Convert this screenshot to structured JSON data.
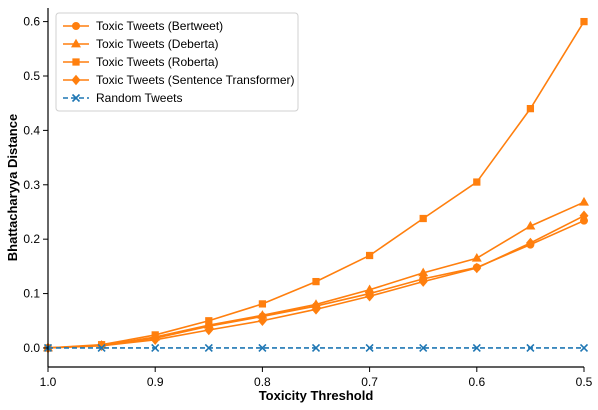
{
  "chart_data": {
    "type": "line",
    "xlabel": "Toxicity Threshold",
    "ylabel": "Bhattacharyya Distance",
    "xlim": [
      1.0,
      0.5
    ],
    "ylim": [
      -0.035,
      0.625
    ],
    "x_reversed": true,
    "grid": false,
    "legend_position": "top-left",
    "x_ticks": [
      1.0,
      0.9,
      0.8,
      0.7,
      0.6,
      0.5
    ],
    "x_tick_labels": [
      "1.0",
      "0.9",
      "0.8",
      "0.7",
      "0.6",
      "0.5"
    ],
    "y_ticks": [
      0.0,
      0.1,
      0.2,
      0.3,
      0.4,
      0.5,
      0.6
    ],
    "y_tick_labels": [
      "0.0",
      "0.1",
      "0.2",
      "0.3",
      "0.4",
      "0.5",
      "0.6"
    ],
    "x": [
      1.0,
      0.95,
      0.9,
      0.85,
      0.8,
      0.75,
      0.7,
      0.65,
      0.6,
      0.55,
      0.5
    ],
    "series": [
      {
        "name": "Toxic Tweets (Bertweet)",
        "marker": "circle",
        "color": "#ff7f0e",
        "line_style": "solid",
        "values": [
          0.0,
          0.005,
          0.018,
          0.04,
          0.058,
          0.077,
          0.1,
          0.127,
          0.148,
          0.19,
          0.234
        ]
      },
      {
        "name": "Toxic Tweets (Deberta)",
        "marker": "triangle",
        "color": "#ff7f0e",
        "line_style": "solid",
        "values": [
          0.0,
          0.005,
          0.02,
          0.042,
          0.06,
          0.08,
          0.107,
          0.138,
          0.165,
          0.224,
          0.268
        ]
      },
      {
        "name": "Toxic Tweets (Roberta)",
        "marker": "square",
        "color": "#ff7f0e",
        "line_style": "solid",
        "values": [
          0.0,
          0.006,
          0.024,
          0.05,
          0.081,
          0.122,
          0.17,
          0.238,
          0.305,
          0.44,
          0.6
        ]
      },
      {
        "name": "Toxic Tweets (Sentence Transformer)",
        "marker": "diamond",
        "color": "#ff7f0e",
        "line_style": "solid",
        "values": [
          0.0,
          0.004,
          0.015,
          0.033,
          0.05,
          0.071,
          0.095,
          0.122,
          0.147,
          0.193,
          0.243
        ]
      },
      {
        "name": "Random Tweets",
        "marker": "x",
        "color": "#1f77b4",
        "line_style": "dashed",
        "values": [
          0.0,
          0.0,
          0.0,
          0.0,
          0.0,
          0.0,
          0.0,
          0.0,
          0.0,
          0.0,
          0.0
        ]
      }
    ]
  }
}
